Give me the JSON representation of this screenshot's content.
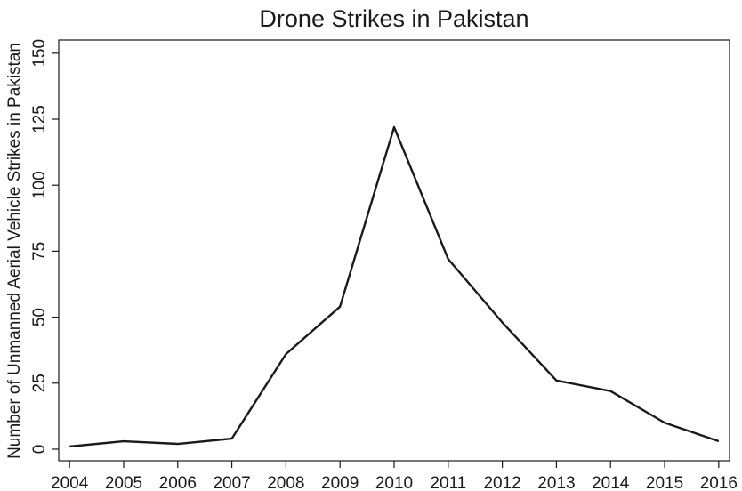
{
  "chart_data": {
    "type": "line",
    "title": "Drone Strikes in Pakistan",
    "y_label": "Number of Unmanned Aerial Vehicle Strikes in Pakistan",
    "x": [
      2004,
      2005,
      2006,
      2007,
      2008,
      2009,
      2010,
      2011,
      2012,
      2013,
      2014,
      2015,
      2016
    ],
    "series": [
      {
        "color": "#1a1a1a",
        "values": [
          1,
          3,
          2,
          4,
          36,
          54,
          122,
          72,
          48,
          26,
          22,
          10,
          3
        ]
      }
    ],
    "xlim": [
      2003.8,
      2016.2
    ],
    "xticks": [
      2004,
      2005,
      2006,
      2007,
      2008,
      2009,
      2010,
      2011,
      2012,
      2013,
      2014,
      2015,
      2016
    ],
    "ylim": [
      -4.4,
      155
    ],
    "yticks": [
      0,
      25,
      50,
      75,
      100,
      125,
      150
    ]
  }
}
